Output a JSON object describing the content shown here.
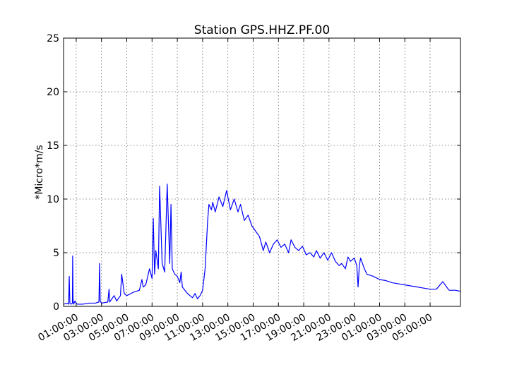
{
  "chart_data": {
    "type": "line",
    "title": "Station GPS.HHZ.PF.00",
    "xlabel": "",
    "ylabel": "*Micro*m/s",
    "ylim": [
      0,
      25
    ],
    "xlim_hours": [
      0,
      31.4
    ],
    "yticks": [
      0,
      5,
      10,
      15,
      20,
      25
    ],
    "xtick_hours": [
      1,
      3,
      5,
      7,
      9,
      11,
      13,
      15,
      17,
      19,
      21,
      23,
      25,
      27,
      29
    ],
    "xtick_labels": [
      "01:00:00",
      "03:00:00",
      "05:00:00",
      "07:00:00",
      "09:00:00",
      "11:00:00",
      "13:00:00",
      "15:00:00",
      "17:00:00",
      "19:00:00",
      "21:00:00",
      "23:00:00",
      "01:00:00",
      "03:00:00",
      "05:00:00"
    ],
    "grid": true,
    "line_color": "#0000ff",
    "series": [
      {
        "x": [
          0.0,
          0.3,
          0.4,
          0.45,
          0.5,
          0.6,
          0.7,
          0.72,
          0.75,
          0.8,
          0.9,
          1.0,
          1.1,
          1.2,
          1.3,
          1.5,
          2.0,
          2.5,
          2.8,
          2.85,
          2.9,
          3.0,
          3.5,
          3.6,
          3.65,
          3.7,
          4.0,
          4.2,
          4.5,
          4.6,
          4.8,
          5.0,
          5.5,
          6.0,
          6.2,
          6.3,
          6.5,
          6.8,
          7.0,
          7.1,
          7.2,
          7.3,
          7.5,
          7.6,
          7.8,
          8.0,
          8.2,
          8.4,
          8.5,
          8.6,
          8.8,
          9.0,
          9.2,
          9.3,
          9.4,
          9.6,
          9.8,
          10.0,
          10.2,
          10.4,
          10.6,
          10.8,
          11.0,
          11.2,
          11.4,
          11.5,
          11.7,
          11.8,
          12.0,
          12.3,
          12.6,
          12.9,
          13.2,
          13.5,
          13.8,
          14.0,
          14.3,
          14.6,
          14.9,
          15.2,
          15.5,
          15.8,
          16.0,
          16.3,
          16.6,
          16.9,
          17.2,
          17.5,
          17.8,
          18.0,
          18.3,
          18.6,
          18.9,
          19.2,
          19.5,
          19.8,
          20.0,
          20.3,
          20.6,
          20.9,
          21.2,
          21.5,
          21.8,
          22.0,
          22.3,
          22.5,
          22.7,
          23.0,
          23.2,
          23.3,
          23.4,
          23.5,
          23.8,
          24.0,
          24.5,
          25.0,
          25.5,
          26.0,
          26.5,
          27.0,
          27.5,
          28.0,
          28.5,
          29.0,
          29.5,
          30.0,
          30.5,
          31.0,
          31.4
        ],
        "y": [
          0.2,
          0.3,
          0.2,
          2.8,
          0.3,
          0.2,
          0.3,
          4.7,
          0.6,
          0.2,
          0.5,
          0.3,
          0.2,
          0.2,
          0.2,
          0.2,
          0.3,
          0.3,
          0.4,
          4.0,
          0.5,
          0.3,
          0.4,
          1.6,
          0.4,
          0.5,
          1.0,
          0.5,
          1.0,
          3.0,
          1.2,
          1.0,
          1.3,
          1.5,
          2.5,
          1.8,
          2.0,
          3.5,
          2.6,
          8.2,
          3.0,
          5.2,
          3.5,
          11.2,
          4.0,
          3.2,
          11.4,
          4.0,
          9.5,
          3.5,
          3.0,
          2.8,
          2.2,
          3.2,
          1.8,
          1.5,
          1.2,
          1.0,
          0.8,
          1.2,
          0.7,
          1.0,
          1.5,
          3.5,
          8.0,
          9.5,
          9.0,
          9.7,
          8.8,
          10.2,
          9.3,
          10.8,
          9.0,
          10.0,
          8.8,
          9.5,
          8.0,
          8.5,
          7.5,
          7.0,
          6.5,
          5.2,
          6.0,
          5.0,
          5.8,
          6.2,
          5.5,
          5.8,
          5.0,
          6.2,
          5.5,
          5.2,
          5.6,
          4.8,
          5.0,
          4.6,
          5.2,
          4.5,
          5.0,
          4.3,
          5.0,
          4.2,
          3.8,
          4.0,
          3.5,
          4.6,
          4.2,
          4.5,
          3.8,
          1.8,
          3.8,
          4.5,
          3.5,
          3.0,
          2.8,
          2.5,
          2.4,
          2.2,
          2.1,
          2.0,
          1.9,
          1.8,
          1.7,
          1.6,
          1.6,
          2.3,
          1.5,
          1.5,
          1.4
        ]
      }
    ]
  }
}
